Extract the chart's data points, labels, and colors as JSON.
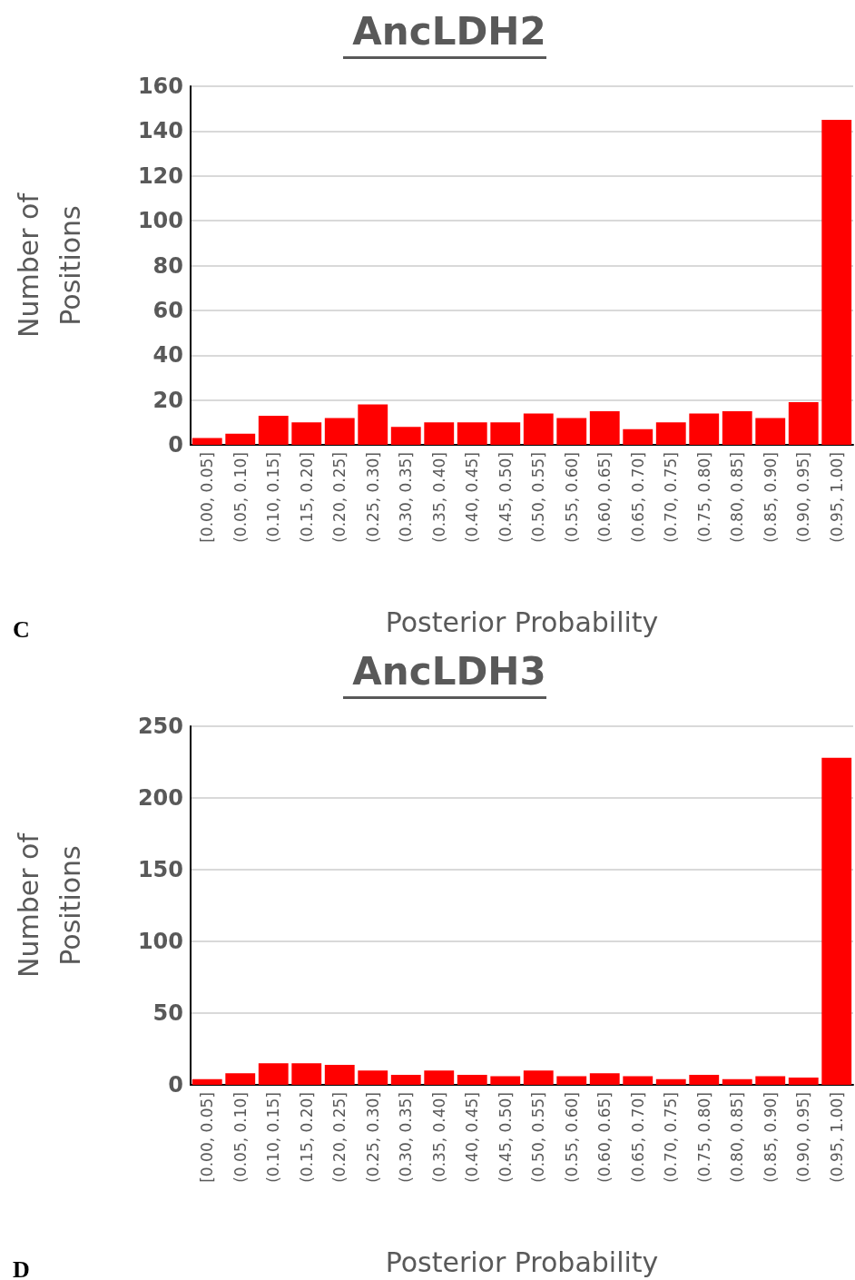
{
  "chart_data": [
    {
      "type": "bar",
      "title": "AncLDH2",
      "xlabel": "Posterior Probability",
      "ylabel": "Number of\nPositions",
      "annotations": [
        "C"
      ],
      "categories": [
        "[0.00, 0.05]",
        "(0.05, 0.10]",
        "(0.10, 0.15]",
        "(0.15, 0.20]",
        "(0.20, 0.25]",
        "(0.25, 0.30]",
        "(0.30, 0.35]",
        "(0.35, 0.40]",
        "(0.40, 0.45]",
        "(0.45, 0.50]",
        "(0.50, 0.55]",
        "(0.55, 0.60]",
        "(0.60, 0.65]",
        "(0.65, 0.70]",
        "(0.70, 0.75]",
        "(0.75, 0.80]",
        "(0.80, 0.85]",
        "(0.85, 0.90]",
        "(0.90, 0.95]",
        "(0.95, 1.00]"
      ],
      "values": [
        3,
        5,
        13,
        10,
        12,
        18,
        8,
        10,
        10,
        10,
        14,
        12,
        15,
        7,
        10,
        14,
        15,
        12,
        19,
        145
      ],
      "color": "#ff0000",
      "ylim": [
        0,
        160
      ],
      "yticks": [
        0,
        20,
        40,
        60,
        80,
        100,
        120,
        140,
        160
      ],
      "grid": "y"
    },
    {
      "type": "bar",
      "title": "AncLDH3",
      "xlabel": "Posterior Probability",
      "ylabel": "Number of\nPositions",
      "annotations": [
        "D"
      ],
      "categories": [
        "[0.00, 0.05]",
        "(0.05, 0.10]",
        "(0.10, 0.15]",
        "(0.15, 0.20]",
        "(0.20, 0.25]",
        "(0.25, 0.30]",
        "(0.30, 0.35]",
        "(0.35, 0.40]",
        "(0.40, 0.45]",
        "(0.45, 0.50]",
        "(0.50, 0.55]",
        "(0.55, 0.60]",
        "(0.60, 0.65]",
        "(0.65, 0.70]",
        "(0.70, 0.75]",
        "(0.75, 0.80]",
        "(0.80, 0.85]",
        "(0.85, 0.90]",
        "(0.90, 0.95]",
        "(0.95, 1.00]"
      ],
      "values": [
        4,
        8,
        15,
        15,
        14,
        10,
        7,
        10,
        7,
        6,
        10,
        6,
        8,
        6,
        4,
        7,
        4,
        6,
        5,
        228
      ],
      "color": "#ff0000",
      "ylim": [
        0,
        250
      ],
      "yticks": [
        0,
        50,
        100,
        150,
        200,
        250
      ],
      "grid": "y"
    }
  ]
}
